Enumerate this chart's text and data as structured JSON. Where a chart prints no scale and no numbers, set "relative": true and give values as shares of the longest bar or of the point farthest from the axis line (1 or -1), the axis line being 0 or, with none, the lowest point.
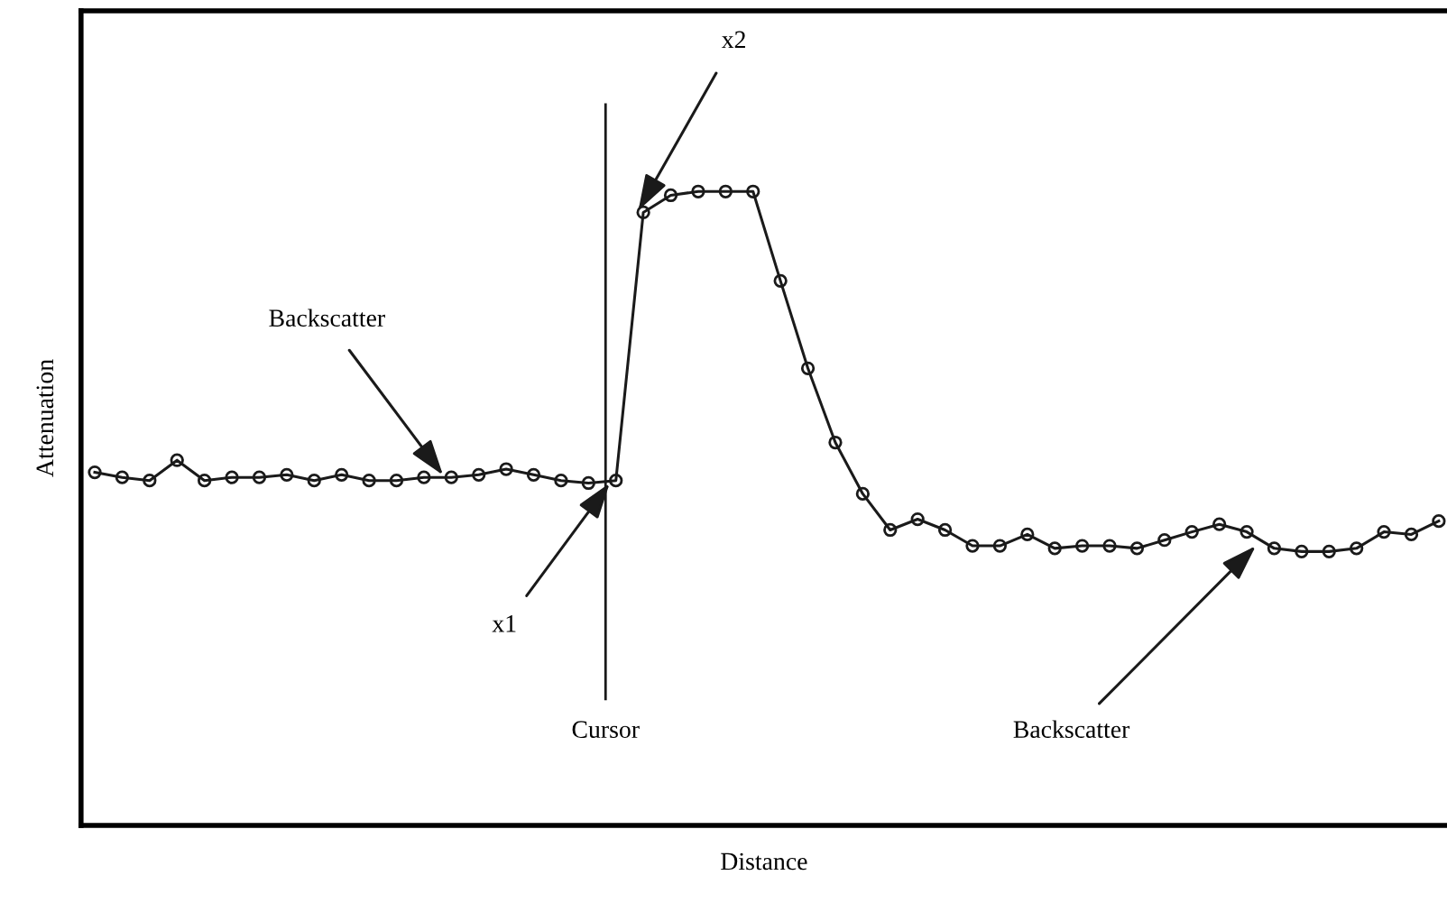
{
  "chart_data": {
    "type": "line",
    "relative": true,
    "xlabel": "Distance",
    "ylabel": "Attenuation",
    "categories": [
      null,
      null,
      null,
      null,
      null,
      null,
      null,
      null,
      null,
      null,
      null,
      null,
      null,
      null,
      null,
      null,
      null,
      null,
      null,
      null,
      null,
      null,
      null,
      null,
      null,
      null,
      null,
      null,
      null,
      null,
      null,
      null,
      null,
      null,
      null,
      null,
      null,
      null,
      null,
      null,
      null,
      null,
      null,
      null,
      null,
      null,
      null,
      null,
      null,
      null
    ],
    "series": [
      {
        "marker": "circle",
        "line_style": "solid",
        "color": "#1a1a1a",
        "values": [
          0.557,
          0.549,
          0.544,
          0.576,
          0.544,
          0.549,
          0.549,
          0.553,
          0.544,
          0.553,
          0.544,
          0.544,
          0.549,
          0.549,
          0.553,
          0.562,
          0.553,
          0.544,
          0.54,
          0.544,
          0.967,
          0.994,
          1,
          1,
          1,
          0.859,
          0.721,
          0.604,
          0.523,
          0.466,
          0.483,
          0.466,
          0.441,
          0.441,
          0.459,
          0.437,
          0.441,
          0.441,
          0.437,
          0.45,
          0.463,
          0.475,
          0.463,
          0.437,
          0.432,
          0.432,
          0.437,
          0.463,
          0.459,
          0.48
        ]
      }
    ],
    "annotations": [
      "Backscatter",
      "x1",
      "x2",
      "Cursor",
      "Backscatter"
    ],
    "grid": false,
    "legend": false
  }
}
